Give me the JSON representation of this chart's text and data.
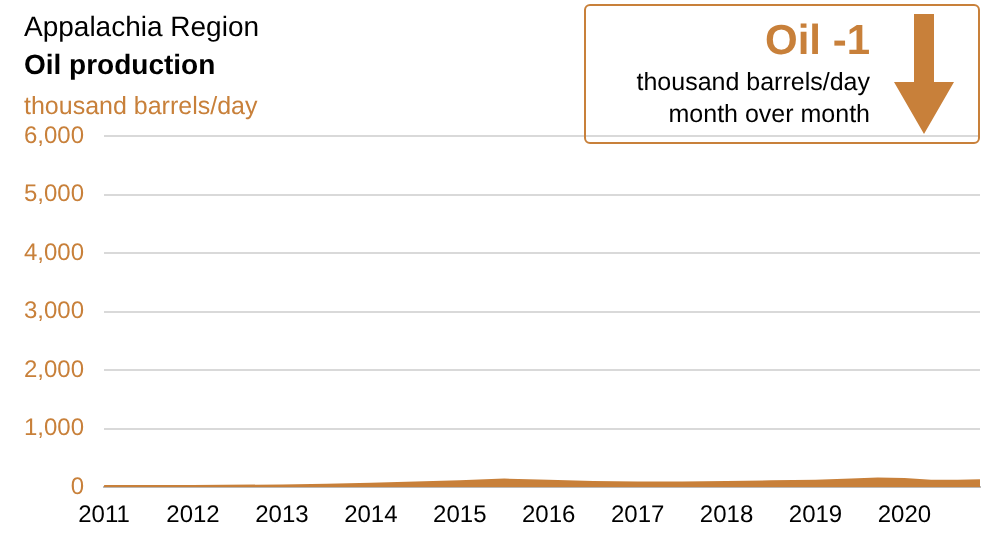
{
  "chart_data": {
    "type": "area",
    "title": "Appalachia Region",
    "subtitle": "Oil production",
    "ylabel": "thousand barrels/day",
    "annotations": [
      "Oil -1",
      "thousand barrels/day",
      "month over month"
    ],
    "x": [
      2011,
      2012,
      2013,
      2013.5,
      2014,
      2014.5,
      2015,
      2015.5,
      2016,
      2016.5,
      2017,
      2017.5,
      2018,
      2018.5,
      2019,
      2019.4,
      2019.7,
      2020,
      2020.3,
      2020.6,
      2020.85
    ],
    "series": [
      {
        "color": "#c8803a",
        "values": [
          20,
          20,
          30,
          40,
          60,
          80,
          100,
          130,
          110,
          90,
          80,
          80,
          90,
          100,
          110,
          130,
          150,
          140,
          110,
          110,
          120
        ]
      }
    ],
    "xlim": [
      2011,
      2020.85
    ],
    "xticks": [
      2011,
      2012,
      2013,
      2014,
      2015,
      2016,
      2017,
      2018,
      2019,
      2020
    ],
    "ylim": [
      0,
      6000
    ],
    "yticks": [
      0,
      {
        "value": 1000,
        "label": "1,000"
      },
      {
        "value": 2000,
        "label": "2,000"
      },
      {
        "value": 3000,
        "label": "3,000"
      },
      {
        "value": 4000,
        "label": "4,000"
      },
      {
        "value": 5000,
        "label": "5,000"
      },
      {
        "value": 6000,
        "label": "6,000"
      }
    ],
    "grid": "y",
    "legend": false
  }
}
